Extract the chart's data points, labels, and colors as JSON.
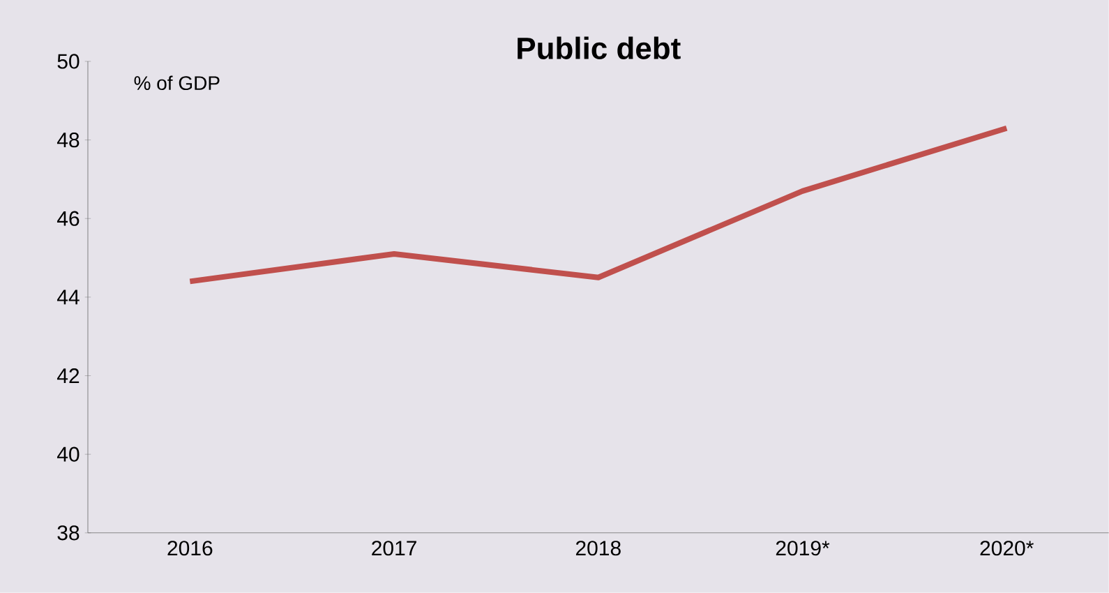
{
  "chart_data": {
    "type": "line",
    "title": "Public debt",
    "annotations": [
      "% of GDP"
    ],
    "categories": [
      "2016",
      "2017",
      "2018",
      "2019*",
      "2020*"
    ],
    "series": [
      {
        "color": "#c0504d",
        "values": [
          44.4,
          45.1,
          44.5,
          46.7,
          48.3
        ]
      }
    ],
    "ylim": [
      38,
      50
    ],
    "yticks": [
      38,
      40,
      42,
      44,
      46,
      48,
      50
    ],
    "grid": false,
    "marker": "none",
    "line_style": "solid"
  }
}
